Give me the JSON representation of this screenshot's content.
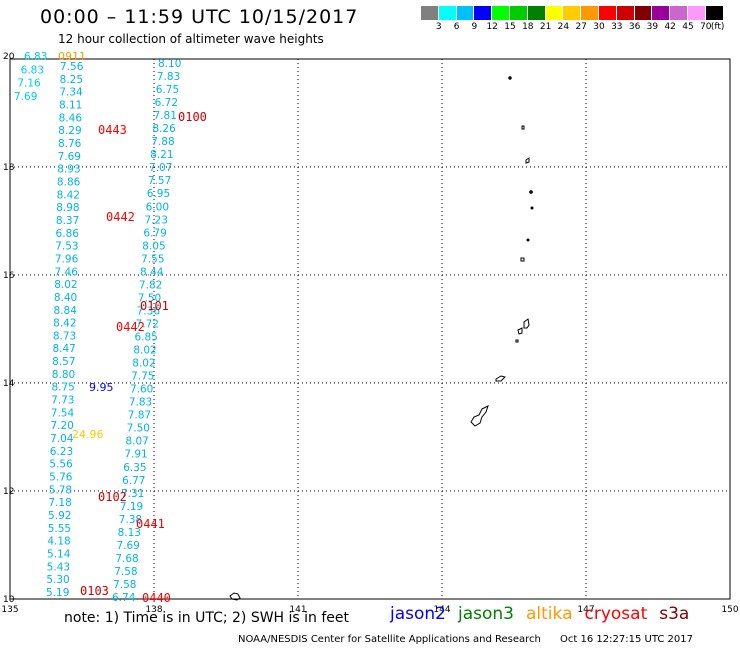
{
  "header": {
    "title": "00:00 – 11:59 UTC 10/15/2017",
    "subtitle": "12 hour collection of altimeter wave heights"
  },
  "legend": {
    "colors": [
      "#808080",
      "#00ffff",
      "#00bfff",
      "#0000ff",
      "#00ff00",
      "#00cc00",
      "#008000",
      "#ffff00",
      "#ffcc00",
      "#ff9900",
      "#ff0000",
      "#cc0000",
      "#800000",
      "#990099",
      "#cc66cc",
      "#ff99ff",
      "#000000"
    ],
    "labels": [
      "3",
      "6",
      "9",
      "12",
      "15",
      "18",
      "21",
      "24",
      "27",
      "30",
      "33",
      "36",
      "39",
      "42",
      "45",
      "70",
      "(ft)"
    ]
  },
  "axes": {
    "lon_ticks": [
      "135",
      "138",
      "141",
      "144",
      "147",
      "150"
    ],
    "lat_ticks": [
      "20",
      "18",
      "16",
      "14",
      "12",
      "10"
    ]
  },
  "tracks": [
    {
      "satellite": "jason3",
      "color": "#00ccee",
      "values": [
        "6.83",
        "6.83",
        "7.16",
        "7.69"
      ]
    },
    {
      "satellite": "jason3",
      "color": "#00b4e6",
      "values": [
        "7.56",
        "8.25",
        "7.34",
        "8.11",
        "8.46",
        "8.29",
        "8.76",
        "7.69",
        "8.93",
        "8.86",
        "8.42",
        "8.98",
        "8.37",
        "6.86",
        "7.53",
        "7.96",
        "7.46",
        "8.02",
        "8.40",
        "8.84",
        "8.42",
        "8.73",
        "8.47",
        "8.57",
        "8.80",
        "8.75",
        "7.73",
        "7.54",
        "7.20",
        "7.04",
        "6.23",
        "5.56",
        "5.76",
        "5.78",
        "7.18",
        "5.92",
        "5.55",
        "4.18",
        "5.14",
        "5.43",
        "5.30",
        "5.19"
      ]
    },
    {
      "satellite": "jason3",
      "color": "#00b4e6",
      "values": [
        "8.10",
        "7.83",
        "6.75",
        "6.72",
        "7.81",
        "8.26",
        "7.88",
        "8.21",
        "7.07",
        "7.57",
        "6.95",
        "6.00",
        "7.23",
        "6.79",
        "8.05",
        "7.55",
        "8.44",
        "7.82",
        "7.50",
        "7.36",
        "7.72",
        "6.85",
        "8.02",
        "8.02",
        "7.75",
        "7.60",
        "7.83",
        "7.87",
        "7.50",
        "8.07",
        "7.91",
        "6.35",
        "6.77",
        "7.31",
        "7.19",
        "7.38",
        "8.13",
        "7.69",
        "7.68",
        "7.58",
        "7.58",
        "6.74"
      ]
    }
  ],
  "special_labels": [
    {
      "text": "0911",
      "color": "#ff9900"
    },
    {
      "text": "9.95",
      "color": "#0000ff"
    },
    {
      "text": "24.96",
      "color": "#ffcc00"
    }
  ],
  "pass_times": [
    {
      "text": "0100",
      "color": "#cc0000"
    },
    {
      "text": "0443",
      "color": "#ff0000"
    },
    {
      "text": "0442",
      "color": "#ff0000"
    },
    {
      "text": "0101",
      "color": "#cc0000"
    },
    {
      "text": "0442",
      "color": "#ff0000"
    },
    {
      "text": "0102",
      "color": "#cc0000"
    },
    {
      "text": "0441",
      "color": "#ff0000"
    },
    {
      "text": "0103",
      "color": "#cc0000"
    },
    {
      "text": "0440",
      "color": "#ff0000"
    }
  ],
  "footer": {
    "note": "note:  1) Time is in UTC;  2) SWH is in feet",
    "satellites": [
      {
        "name": "jason2",
        "color": "#0000ff"
      },
      {
        "name": "jason3",
        "color": "#008000"
      },
      {
        "name": "altika",
        "color": "#ff9900"
      },
      {
        "name": "cryosat",
        "color": "#ff0000"
      },
      {
        "name": "s3a",
        "color": "#800000"
      }
    ],
    "credit": "NOAA/NESDIS Center for Satellite Applications and Research",
    "timestamp": "Oct 16 12:27:15 UTC 2017"
  }
}
